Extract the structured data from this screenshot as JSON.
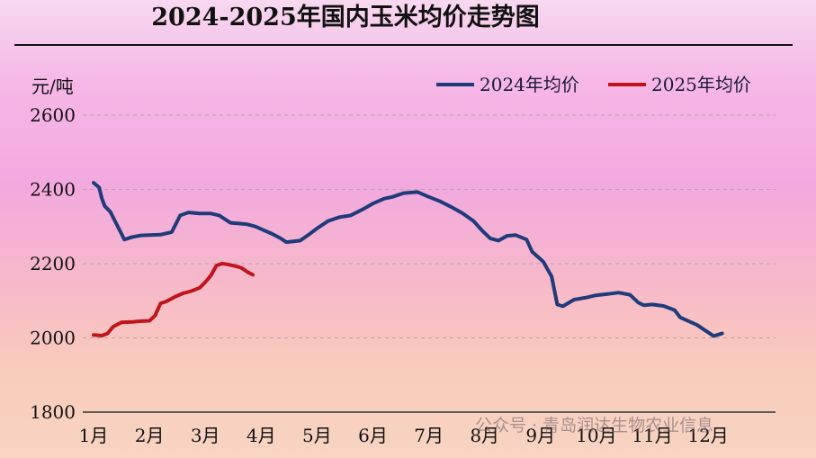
{
  "chart_data": {
    "type": "line",
    "title": "2024-2025年国内玉米均价走势图",
    "ylabel": "元/吨",
    "ylim": [
      1800,
      2600
    ],
    "yticks": [
      1800,
      2000,
      2200,
      2400,
      2600
    ],
    "x_labels": [
      "1月",
      "2月",
      "3月",
      "4月",
      "5月",
      "6月",
      "7月",
      "8月",
      "9月",
      "10月",
      "11月",
      "12月"
    ],
    "xlim": [
      1,
      12.5
    ],
    "grid": "horizontal dashed",
    "legend_position": "top-right",
    "series": [
      {
        "name": "2024年均价",
        "color": "#1f3b7a",
        "points": [
          [
            1.0,
            2418
          ],
          [
            1.1,
            2405
          ],
          [
            1.15,
            2375
          ],
          [
            1.2,
            2355
          ],
          [
            1.3,
            2340
          ],
          [
            1.4,
            2310
          ],
          [
            1.5,
            2280
          ],
          [
            1.55,
            2265
          ],
          [
            1.7,
            2272
          ],
          [
            1.85,
            2276
          ],
          [
            2.0,
            2277
          ],
          [
            2.2,
            2278
          ],
          [
            2.4,
            2285
          ],
          [
            2.55,
            2330
          ],
          [
            2.7,
            2338
          ],
          [
            2.9,
            2335
          ],
          [
            3.1,
            2335
          ],
          [
            3.25,
            2330
          ],
          [
            3.45,
            2310
          ],
          [
            3.6,
            2308
          ],
          [
            3.75,
            2306
          ],
          [
            3.9,
            2300
          ],
          [
            4.05,
            2290
          ],
          [
            4.2,
            2280
          ],
          [
            4.35,
            2268
          ],
          [
            4.45,
            2258
          ],
          [
            4.7,
            2262
          ],
          [
            4.85,
            2278
          ],
          [
            5.0,
            2295
          ],
          [
            5.2,
            2315
          ],
          [
            5.4,
            2325
          ],
          [
            5.6,
            2330
          ],
          [
            5.8,
            2345
          ],
          [
            6.0,
            2362
          ],
          [
            6.2,
            2375
          ],
          [
            6.35,
            2380
          ],
          [
            6.55,
            2390
          ],
          [
            6.8,
            2393
          ],
          [
            7.0,
            2380
          ],
          [
            7.2,
            2368
          ],
          [
            7.4,
            2353
          ],
          [
            7.6,
            2336
          ],
          [
            7.8,
            2315
          ],
          [
            7.95,
            2290
          ],
          [
            8.1,
            2268
          ],
          [
            8.25,
            2262
          ],
          [
            8.4,
            2275
          ],
          [
            8.55,
            2277
          ],
          [
            8.75,
            2265
          ],
          [
            8.85,
            2232
          ],
          [
            9.05,
            2205
          ],
          [
            9.2,
            2165
          ],
          [
            9.3,
            2090
          ],
          [
            9.4,
            2085
          ],
          [
            9.6,
            2103
          ],
          [
            9.8,
            2108
          ],
          [
            10.0,
            2115
          ],
          [
            10.2,
            2118
          ],
          [
            10.4,
            2122
          ],
          [
            10.6,
            2116
          ],
          [
            10.75,
            2095
          ],
          [
            10.85,
            2088
          ],
          [
            11.0,
            2090
          ],
          [
            11.2,
            2086
          ],
          [
            11.4,
            2075
          ],
          [
            11.5,
            2055
          ],
          [
            11.65,
            2045
          ],
          [
            11.8,
            2035
          ],
          [
            11.95,
            2020
          ],
          [
            12.1,
            2005
          ],
          [
            12.25,
            2012
          ]
        ]
      },
      {
        "name": "2025年均价",
        "color": "#c0141c",
        "points": [
          [
            1.0,
            2008
          ],
          [
            1.15,
            2006
          ],
          [
            1.25,
            2012
          ],
          [
            1.35,
            2030
          ],
          [
            1.5,
            2042
          ],
          [
            1.7,
            2043
          ],
          [
            1.85,
            2045
          ],
          [
            2.0,
            2046
          ],
          [
            2.1,
            2060
          ],
          [
            2.2,
            2093
          ],
          [
            2.3,
            2098
          ],
          [
            2.45,
            2110
          ],
          [
            2.6,
            2120
          ],
          [
            2.75,
            2126
          ],
          [
            2.9,
            2135
          ],
          [
            3.0,
            2150
          ],
          [
            3.1,
            2168
          ],
          [
            3.2,
            2195
          ],
          [
            3.3,
            2200
          ],
          [
            3.4,
            2198
          ],
          [
            3.55,
            2193
          ],
          [
            3.65,
            2188
          ],
          [
            3.75,
            2178
          ],
          [
            3.85,
            2170
          ]
        ]
      }
    ]
  },
  "watermark": "公众号 · 青岛润达生物农业信息"
}
